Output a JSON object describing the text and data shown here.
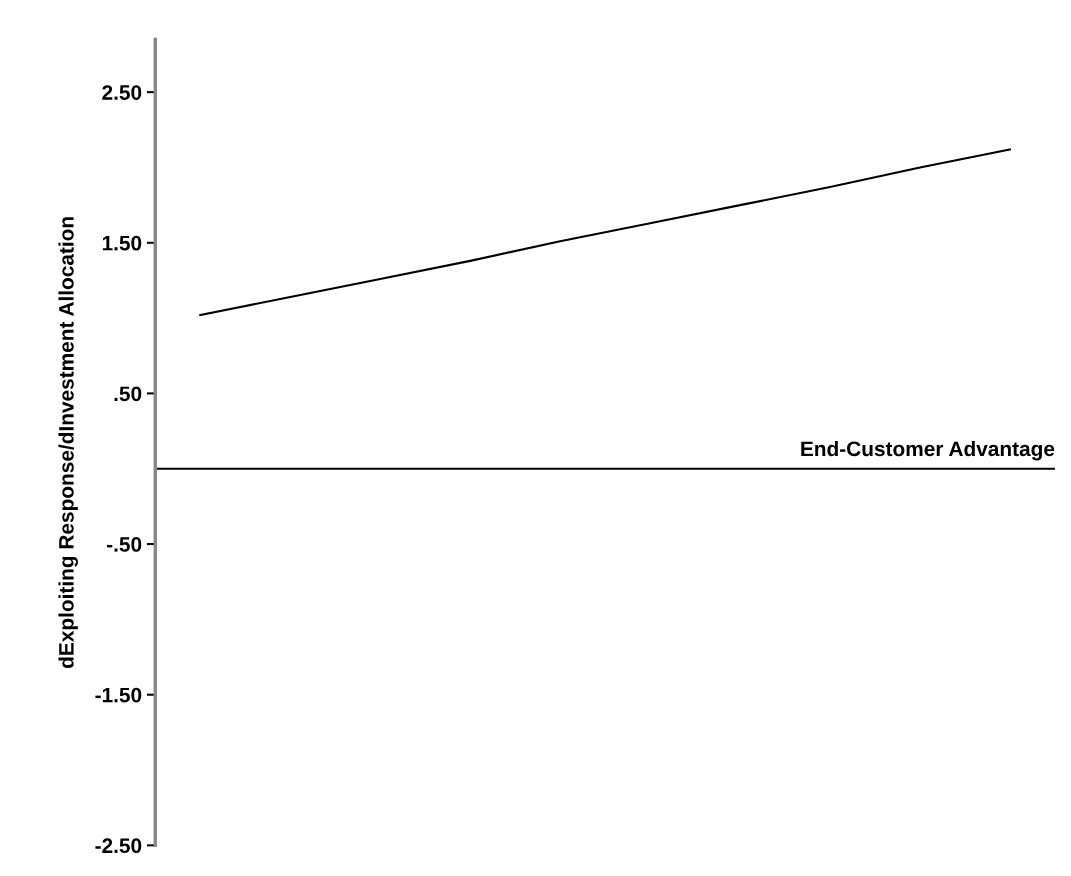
{
  "chart_data": {
    "type": "line",
    "ylabel": "dExploiting Response/dInvestment Allocation",
    "categories": [
      null,
      null,
      null,
      null,
      null,
      null,
      null,
      null,
      null,
      null
    ],
    "series": [
      {
        "color": "#000000",
        "values": [
          1.02,
          1.14,
          1.26,
          1.38,
          1.51,
          1.63,
          1.75,
          1.87,
          2.0,
          2.12
        ]
      }
    ],
    "ylim": [
      -2.5,
      2.85
    ],
    "yticks": [
      {
        "value": -2.5,
        "label": "-2.50"
      },
      {
        "value": -1.5,
        "label": "-1.50"
      },
      {
        "value": -0.5,
        "label": "-.50"
      },
      {
        "value": 0.5,
        "label": ".50"
      },
      {
        "value": 1.5,
        "label": "1.50"
      },
      {
        "value": 2.5,
        "label": "2.50"
      }
    ],
    "ref_lines": [
      {
        "axis": "y",
        "value": 0,
        "label": "End-Customer Advantage",
        "color": "#000000"
      }
    ],
    "grid": false,
    "legend": false,
    "marker": "none",
    "line_style": "solid"
  }
}
